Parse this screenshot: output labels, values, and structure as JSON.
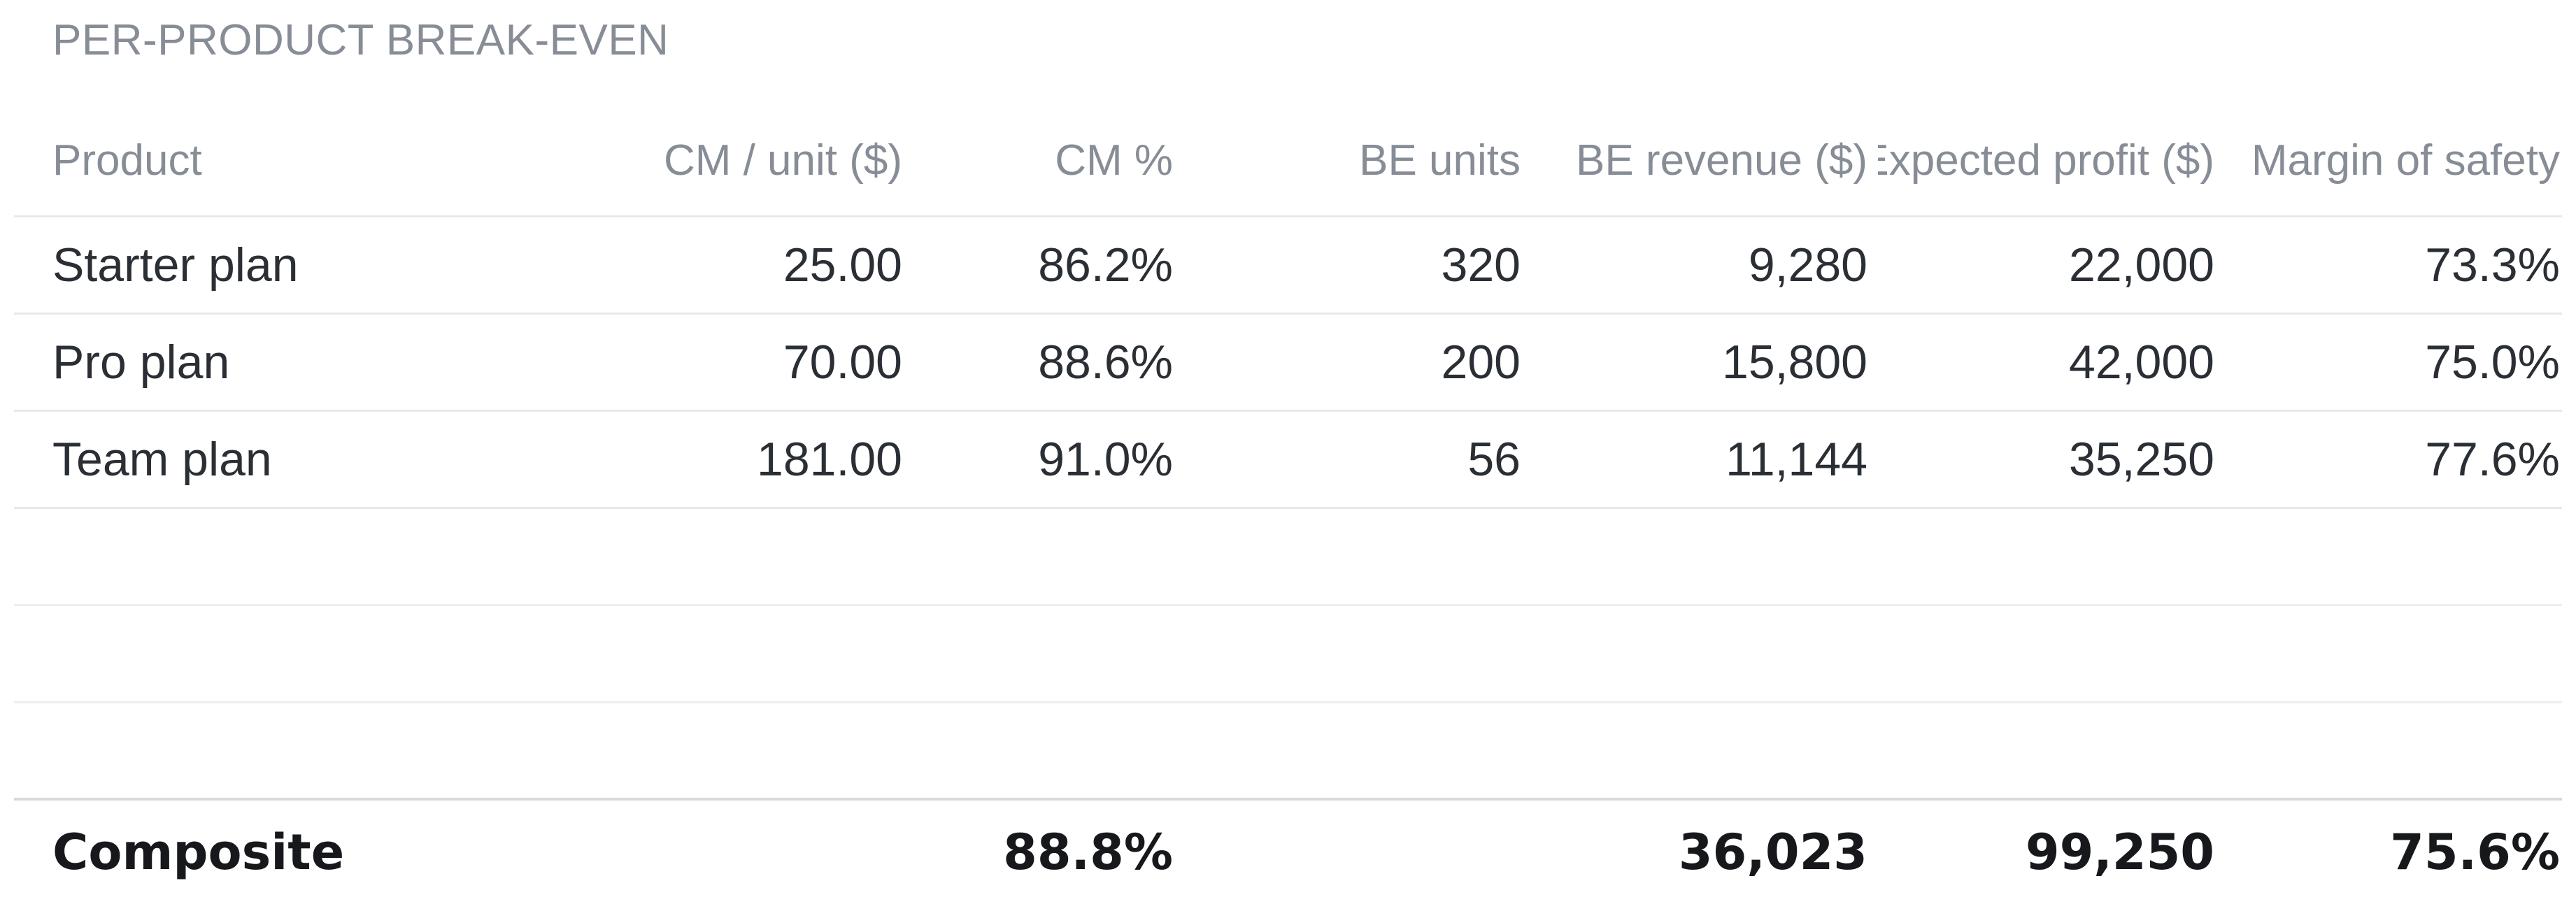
{
  "section": {
    "title": "PER-PRODUCT BREAK-EVEN"
  },
  "table": {
    "columns": [
      "Product",
      "CM / unit ($)",
      "CM %",
      "BE units",
      "BE revenue ($)",
      "Expected profit ($)",
      "Margin of safety"
    ],
    "rows": [
      {
        "product": "Starter plan",
        "cm_unit": "25.00",
        "cm_pct": "86.2%",
        "be_units": "320",
        "be_revenue": "9,280",
        "expected_profit": "22,000",
        "margin_safety": "73.3%"
      },
      {
        "product": "Pro plan",
        "cm_unit": "70.00",
        "cm_pct": "88.6%",
        "be_units": "200",
        "be_revenue": "15,800",
        "expected_profit": "42,000",
        "margin_safety": "75.0%"
      },
      {
        "product": "Team plan",
        "cm_unit": "181.00",
        "cm_pct": "91.0%",
        "be_units": "56",
        "be_revenue": "11,144",
        "expected_profit": "35,250",
        "margin_safety": "77.6%"
      }
    ],
    "footer": {
      "label": "Composite",
      "cm_pct": "88.8%",
      "be_revenue": "36,023",
      "expected_profit": "99,250",
      "margin_safety": "75.6%"
    }
  }
}
